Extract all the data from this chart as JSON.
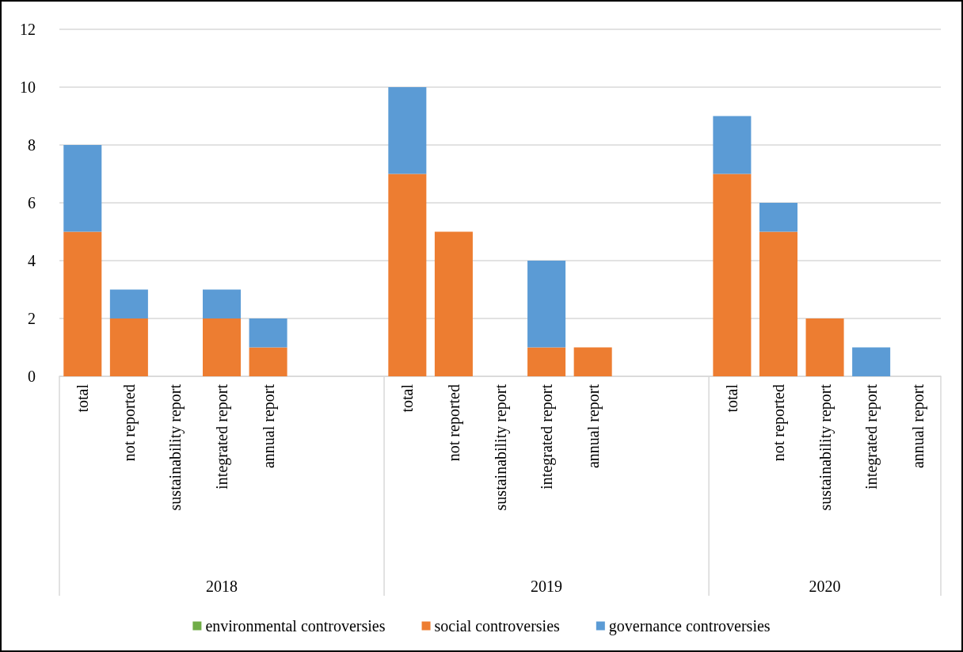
{
  "chart_data": {
    "type": "bar",
    "stacked": true,
    "categories": [
      "total",
      "not reported",
      "sustainability report",
      "integrated report",
      "annual report",
      null,
      null,
      "total",
      "not reported",
      "sustainability report",
      "integrated report",
      "annual report",
      null,
      null,
      "total",
      "not reported",
      "sustainability report",
      "integrated report",
      "annual report"
    ],
    "series": [
      {
        "name": "environmental controversies",
        "color": "#70ad47",
        "values": [
          0,
          0,
          0,
          0,
          0,
          null,
          null,
          0,
          0,
          0,
          0,
          0,
          null,
          null,
          0,
          0,
          0,
          0,
          0
        ]
      },
      {
        "name": "social controversies",
        "color": "#ed7d31",
        "values": [
          5,
          2,
          0,
          2,
          1,
          null,
          null,
          7,
          5,
          0,
          1,
          1,
          null,
          null,
          7,
          5,
          2,
          0,
          0
        ]
      },
      {
        "name": "governance controversies",
        "color": "#5b9bd5",
        "values": [
          3,
          1,
          0,
          1,
          1,
          null,
          null,
          3,
          0,
          0,
          3,
          0,
          null,
          null,
          2,
          1,
          0,
          1,
          0
        ]
      }
    ],
    "annotations": [
      "2018",
      "2019",
      "2020"
    ],
    "ylim": [
      0,
      12
    ],
    "yticks": [
      0,
      2,
      4,
      6,
      8,
      10,
      12
    ],
    "grid": "y",
    "legend": "bottom"
  }
}
